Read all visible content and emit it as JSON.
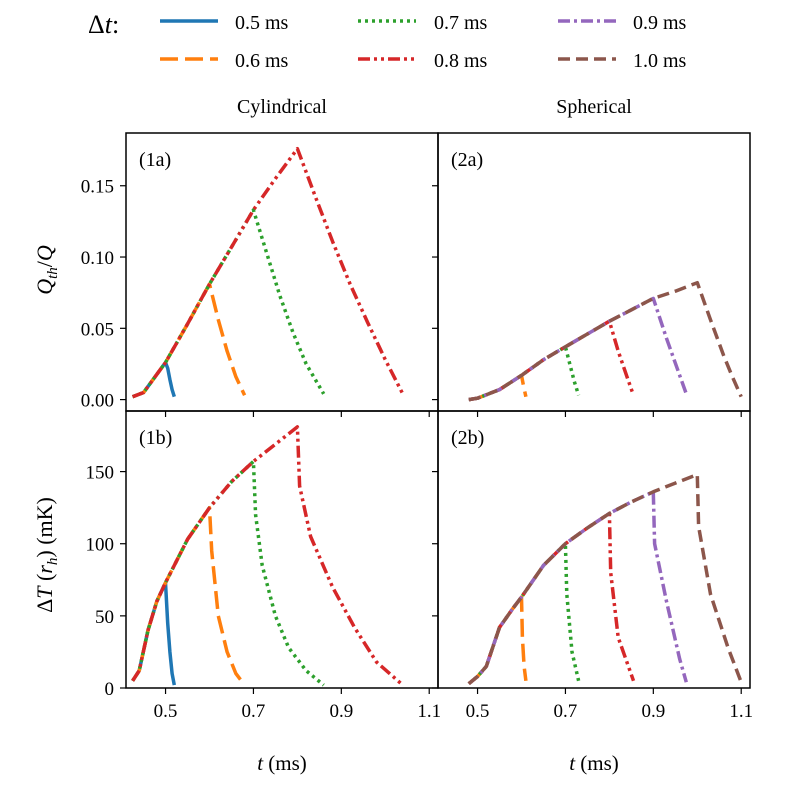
{
  "legend": {
    "title_symbol": "Δ",
    "title_var": "t",
    "title_colon": ":",
    "entries": [
      {
        "label": "0.5 ms",
        "color": "#1f77b4",
        "style": "solid"
      },
      {
        "label": "0.6 ms",
        "color": "#ff7f0e",
        "style": "dashed"
      },
      {
        "label": "0.7 ms",
        "color": "#2ca02c",
        "style": "dotted"
      },
      {
        "label": "0.8 ms",
        "color": "#d62728",
        "style": "dashdotdot"
      },
      {
        "label": "0.9 ms",
        "color": "#9467bd",
        "style": "dashdot"
      },
      {
        "label": "1.0 ms",
        "color": "#8c564b",
        "style": "dashed_short"
      }
    ]
  },
  "columns": {
    "left": "Cylindrical",
    "right": "Spherical"
  },
  "axes": {
    "xlabel_var": "t",
    "xlabel_unit": " (ms)",
    "ylabel_top": "Qth/Q",
    "ylabel_bottom": "ΔT (rh) (mK)",
    "xticks": [
      "0.5",
      "0.7",
      "0.9",
      "1.1"
    ],
    "yticks_top": [
      "0.00",
      "0.05",
      "0.10",
      "0.15"
    ],
    "yticks_bottom": [
      "0",
      "50",
      "100",
      "150"
    ]
  },
  "chart_data": [
    {
      "type": "line",
      "panel_label": "(1a)",
      "column": "Cylindrical",
      "xlim": [
        0.41,
        1.12
      ],
      "ylim": [
        -0.008,
        0.187
      ],
      "series": [
        {
          "name": "0.5 ms",
          "x": [
            0.425,
            0.45,
            0.5,
            0.505,
            0.51,
            0.515,
            0.52
          ],
          "y": [
            0.002,
            0.005,
            0.026,
            0.022,
            0.014,
            0.007,
            0.002
          ]
        },
        {
          "name": "0.6 ms",
          "x": [
            0.425,
            0.45,
            0.5,
            0.55,
            0.6,
            0.62,
            0.64,
            0.66,
            0.68
          ],
          "y": [
            0.002,
            0.005,
            0.026,
            0.053,
            0.081,
            0.056,
            0.034,
            0.016,
            0.003
          ]
        },
        {
          "name": "0.7 ms",
          "x": [
            0.425,
            0.45,
            0.5,
            0.55,
            0.6,
            0.65,
            0.7,
            0.73,
            0.76,
            0.79,
            0.82,
            0.86
          ],
          "y": [
            0.002,
            0.005,
            0.026,
            0.053,
            0.081,
            0.107,
            0.133,
            0.103,
            0.073,
            0.047,
            0.025,
            0.004
          ]
        },
        {
          "name": "0.8 ms",
          "x": [
            0.425,
            0.45,
            0.5,
            0.55,
            0.6,
            0.65,
            0.7,
            0.75,
            0.8,
            0.84,
            0.88,
            0.92,
            0.96,
            1.0,
            1.04
          ],
          "y": [
            0.002,
            0.005,
            0.026,
            0.053,
            0.081,
            0.107,
            0.133,
            0.155,
            0.176,
            0.143,
            0.111,
            0.081,
            0.054,
            0.028,
            0.004
          ]
        }
      ]
    },
    {
      "type": "line",
      "panel_label": "(2a)",
      "column": "Spherical",
      "xlim": [
        0.41,
        1.12
      ],
      "ylim": [
        -0.008,
        0.187
      ],
      "series": [
        {
          "name": "0.6 ms",
          "x": [
            0.48,
            0.5,
            0.55,
            0.6,
            0.605,
            0.61
          ],
          "y": [
            0.0,
            0.001,
            0.007,
            0.017,
            0.009,
            0.002
          ]
        },
        {
          "name": "0.7 ms",
          "x": [
            0.48,
            0.5,
            0.55,
            0.6,
            0.65,
            0.7,
            0.71,
            0.72,
            0.73
          ],
          "y": [
            0.0,
            0.001,
            0.007,
            0.017,
            0.028,
            0.037,
            0.025,
            0.013,
            0.003
          ]
        },
        {
          "name": "0.8 ms",
          "x": [
            0.48,
            0.5,
            0.55,
            0.6,
            0.65,
            0.7,
            0.75,
            0.8,
            0.82,
            0.84,
            0.855
          ],
          "y": [
            0.0,
            0.001,
            0.007,
            0.017,
            0.028,
            0.037,
            0.046,
            0.055,
            0.034,
            0.016,
            0.003
          ]
        },
        {
          "name": "0.9 ms",
          "x": [
            0.48,
            0.5,
            0.55,
            0.6,
            0.65,
            0.7,
            0.75,
            0.8,
            0.85,
            0.9,
            0.93,
            0.96,
            0.975
          ],
          "y": [
            0.0,
            0.001,
            0.007,
            0.017,
            0.028,
            0.037,
            0.046,
            0.055,
            0.063,
            0.071,
            0.043,
            0.017,
            0.004
          ]
        },
        {
          "name": "1.0 ms",
          "x": [
            0.48,
            0.5,
            0.55,
            0.6,
            0.65,
            0.7,
            0.75,
            0.8,
            0.85,
            0.9,
            0.95,
            1.0,
            1.03,
            1.06,
            1.08,
            1.1
          ],
          "y": [
            0.0,
            0.001,
            0.007,
            0.017,
            0.028,
            0.037,
            0.046,
            0.055,
            0.063,
            0.071,
            0.076,
            0.082,
            0.056,
            0.031,
            0.016,
            0.002
          ]
        }
      ]
    },
    {
      "type": "line",
      "panel_label": "(1b)",
      "column": "Cylindrical",
      "xlim": [
        0.41,
        1.12
      ],
      "ylim": [
        0,
        192
      ],
      "series": [
        {
          "name": "0.5 ms",
          "x": [
            0.425,
            0.44,
            0.46,
            0.48,
            0.5,
            0.505,
            0.51,
            0.515,
            0.52
          ],
          "y": [
            5,
            12,
            40,
            60,
            73,
            45,
            25,
            10,
            2
          ]
        },
        {
          "name": "0.6 ms",
          "x": [
            0.425,
            0.44,
            0.46,
            0.48,
            0.5,
            0.55,
            0.6,
            0.605,
            0.62,
            0.64,
            0.66,
            0.68
          ],
          "y": [
            5,
            12,
            40,
            60,
            73,
            103,
            125,
            95,
            50,
            25,
            10,
            2
          ]
        },
        {
          "name": "0.7 ms",
          "x": [
            0.425,
            0.44,
            0.46,
            0.48,
            0.5,
            0.55,
            0.6,
            0.65,
            0.7,
            0.705,
            0.72,
            0.75,
            0.78,
            0.82,
            0.86
          ],
          "y": [
            5,
            12,
            40,
            60,
            73,
            103,
            125,
            143,
            157,
            120,
            85,
            50,
            28,
            12,
            2
          ]
        },
        {
          "name": "0.8 ms",
          "x": [
            0.425,
            0.44,
            0.46,
            0.48,
            0.5,
            0.55,
            0.6,
            0.65,
            0.7,
            0.75,
            0.8,
            0.805,
            0.83,
            0.88,
            0.93,
            0.98,
            1.04
          ],
          "y": [
            5,
            12,
            40,
            60,
            73,
            103,
            125,
            143,
            157,
            169,
            181,
            140,
            105,
            70,
            42,
            18,
            2
          ]
        }
      ]
    },
    {
      "type": "line",
      "panel_label": "(2b)",
      "column": "Spherical",
      "xlim": [
        0.41,
        1.12
      ],
      "ylim": [
        0,
        192
      ],
      "series": [
        {
          "name": "0.6 ms",
          "x": [
            0.48,
            0.5,
            0.52,
            0.55,
            0.58,
            0.6,
            0.602,
            0.606,
            0.61
          ],
          "y": [
            3,
            8,
            15,
            42,
            55,
            63,
            35,
            15,
            5
          ]
        },
        {
          "name": "0.7 ms",
          "x": [
            0.48,
            0.5,
            0.52,
            0.55,
            0.58,
            0.6,
            0.65,
            0.7,
            0.703,
            0.715,
            0.73
          ],
          "y": [
            3,
            8,
            15,
            42,
            55,
            63,
            85,
            100,
            65,
            25,
            5
          ]
        },
        {
          "name": "0.8 ms",
          "x": [
            0.48,
            0.5,
            0.52,
            0.55,
            0.58,
            0.6,
            0.65,
            0.7,
            0.75,
            0.8,
            0.803,
            0.82,
            0.855
          ],
          "y": [
            3,
            8,
            15,
            42,
            55,
            63,
            85,
            100,
            111,
            121,
            80,
            35,
            5
          ]
        },
        {
          "name": "0.9 ms",
          "x": [
            0.48,
            0.5,
            0.52,
            0.55,
            0.58,
            0.6,
            0.65,
            0.7,
            0.75,
            0.8,
            0.85,
            0.9,
            0.903,
            0.93,
            0.96,
            0.975
          ],
          "y": [
            3,
            8,
            15,
            42,
            55,
            63,
            85,
            100,
            111,
            121,
            129,
            136,
            100,
            60,
            20,
            4
          ]
        },
        {
          "name": "1.0 ms",
          "x": [
            0.48,
            0.5,
            0.52,
            0.55,
            0.58,
            0.6,
            0.65,
            0.7,
            0.75,
            0.8,
            0.85,
            0.9,
            0.95,
            1.0,
            1.003,
            1.03,
            1.07,
            1.1
          ],
          "y": [
            3,
            8,
            15,
            42,
            55,
            63,
            85,
            100,
            111,
            121,
            129,
            136,
            142,
            148,
            112,
            65,
            28,
            4
          ]
        }
      ]
    }
  ]
}
